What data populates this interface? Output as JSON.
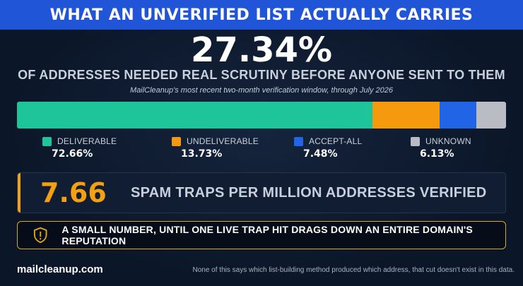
{
  "header": {
    "title": "WHAT AN UNVERIFIED LIST ACTUALLY CARRIES"
  },
  "hero": {
    "stat": "27.34%",
    "headline": "OF ADDRESSES NEEDED REAL SCRUTINY BEFORE ANYONE SENT TO THEM",
    "subline": "MailCleanup's most recent two-month verification window, through July 2026"
  },
  "breakdown": {
    "segments": [
      {
        "label": "DELIVERABLE",
        "pct_text": "72.66%",
        "value": 72.66,
        "color": "#1fc59a"
      },
      {
        "label": "UNDELIVERABLE",
        "pct_text": "13.73%",
        "value": 13.73,
        "color": "#f59a0e"
      },
      {
        "label": "ACCEPT-ALL",
        "pct_text": "7.48%",
        "value": 7.48,
        "color": "#2165e6"
      },
      {
        "label": "UNKNOWN",
        "pct_text": "6.13%",
        "value": 6.13,
        "color": "#b9bcc2"
      }
    ]
  },
  "spam_traps": {
    "number": "7.66",
    "text": "SPAM TRAPS PER MILLION ADDRESSES VERIFIED",
    "accent_color": "#f5a00f"
  },
  "warning": {
    "icon": "shield-warning-icon",
    "text": "A SMALL NUMBER, UNTIL ONE LIVE TRAP HIT DRAGS DOWN AN ENTIRE DOMAIN'S REPUTATION"
  },
  "footer": {
    "brand": "mailcleanup.com",
    "note": "None of this says which list-building method produced which address, that cut doesn't exist in this data."
  }
}
